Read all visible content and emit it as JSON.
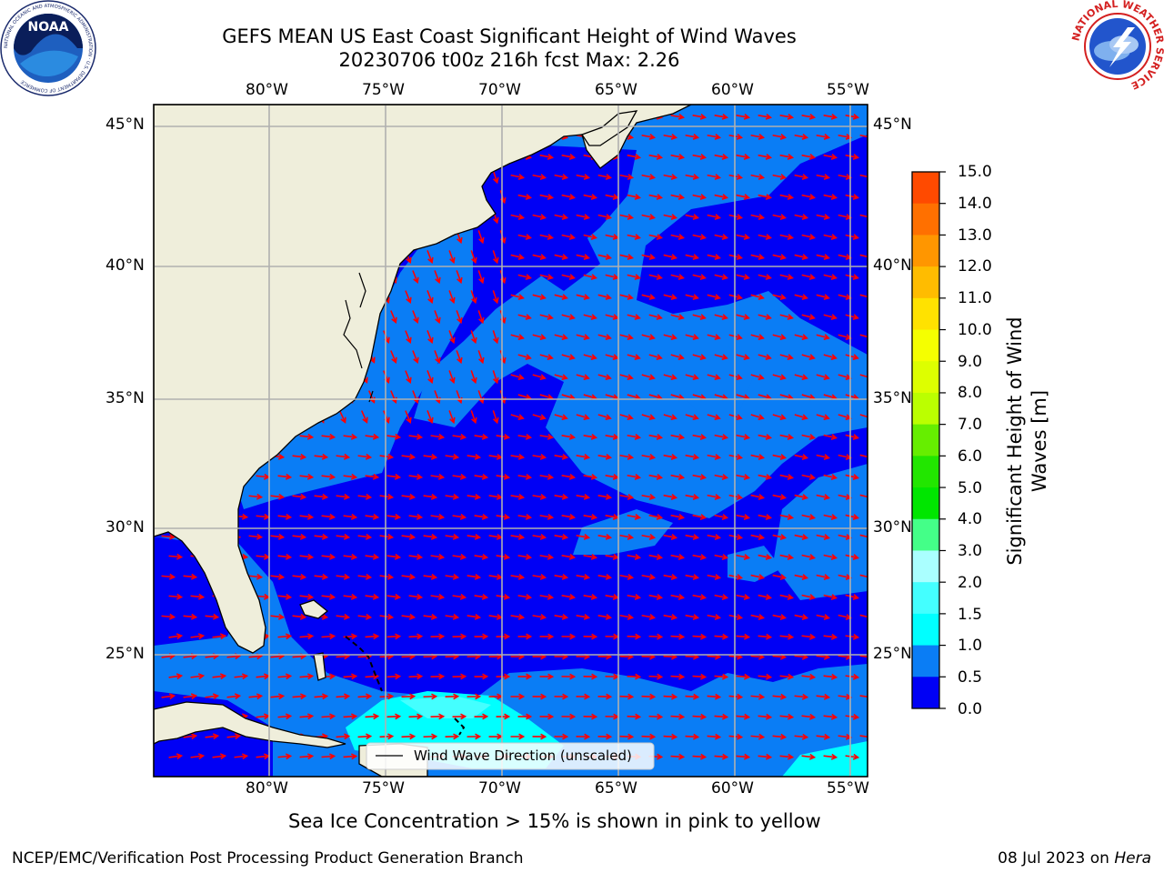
{
  "header": {
    "title_line1": "GEFS MEAN US East Coast Significant Height of Wind Waves",
    "title_line2": "20230706 t00z 216h fcst   Max: 2.26"
  },
  "map": {
    "lon_labels": [
      "80°W",
      "75°W",
      "70°W",
      "65°W",
      "60°W",
      "55°W"
    ],
    "lat_labels": [
      "45°N",
      "40°N",
      "35°N",
      "30°N",
      "25°N"
    ],
    "extent": {
      "lon": [
        -85,
        -54.3
      ],
      "lat": [
        20.3,
        45.9
      ]
    },
    "legend_label": "Wind Wave Direction (unscaled)",
    "colors": {
      "land": "#efeedb",
      "sea_dark": "#0000f5",
      "sea_light": "#0a7df5",
      "sea_cyan": "#00ffff",
      "arrow": "#ff0000"
    }
  },
  "colorbar": {
    "title": "Significant Height of Wind Waves [m]",
    "ticks": [
      "15.0",
      "14.0",
      "13.0",
      "12.0",
      "11.0",
      "10.0",
      "9.0",
      "8.0",
      "7.0",
      "6.0",
      "5.0",
      "4.0",
      "3.0",
      "2.0",
      "1.5",
      "1.0",
      "0.5",
      "0.0"
    ],
    "colors": [
      "#ff0000",
      "#ff2400",
      "#ff4a00",
      "#ff7000",
      "#ff9600",
      "#ffbc00",
      "#ffe200",
      "#f5ff00",
      "#ddff00",
      "#bbff00",
      "#66ee00",
      "#22e600",
      "#00e600",
      "#44ff88",
      "#aaffff",
      "#44ffff",
      "#00ffff",
      "#0a7df5",
      "#0000f5"
    ]
  },
  "notes": {
    "sea_ice": "Sea Ice Concentration > 15% is shown in pink to yellow"
  },
  "footer": {
    "left": "NCEP/EMC/Verification Post Processing Product Generation Branch",
    "date_text": "08 Jul 2023 on ",
    "machine": "Hera"
  },
  "logos": {
    "noaa": "NOAA",
    "noaa_ring": "NATIONAL OCEANIC AND ATMOSPHERIC ADMINISTRATION · U.S. DEPARTMENT OF COMMERCE",
    "nws_ring": "NATIONAL WEATHER SERVICE"
  }
}
